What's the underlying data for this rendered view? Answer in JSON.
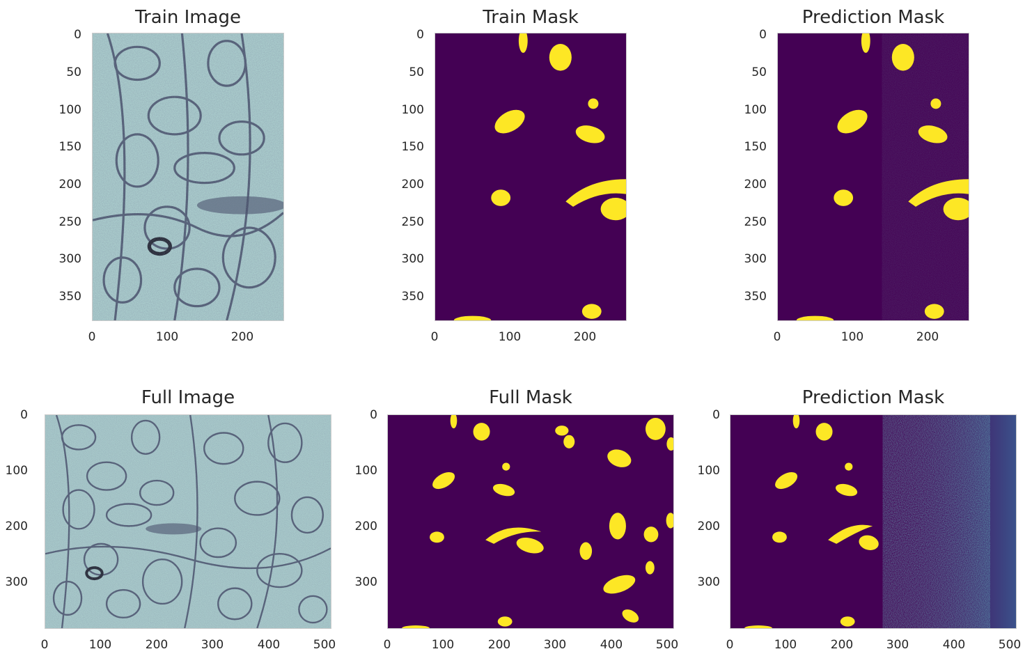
{
  "figure": {
    "panels": [
      {
        "id": "train-image",
        "title": "Train Image",
        "kind": "em",
        "xticks": [
          "0",
          "100",
          "200"
        ],
        "yticks": [
          "0",
          "50",
          "100",
          "150",
          "200",
          "250",
          "300",
          "350"
        ]
      },
      {
        "id": "train-mask",
        "title": "Train Mask",
        "kind": "mask",
        "xticks": [
          "0",
          "100",
          "200"
        ],
        "yticks": [
          "0",
          "50",
          "100",
          "150",
          "200",
          "250",
          "300",
          "350"
        ]
      },
      {
        "id": "train-prediction",
        "title": "Prediction Mask",
        "kind": "pred",
        "xticks": [
          "0",
          "100",
          "200"
        ],
        "yticks": [
          "0",
          "50",
          "100",
          "150",
          "200",
          "250",
          "300",
          "350"
        ]
      },
      {
        "id": "full-image",
        "title": "Full Image",
        "kind": "em",
        "xticks": [
          "0",
          "100",
          "200",
          "300",
          "400",
          "500"
        ],
        "yticks": [
          "0",
          "100",
          "200",
          "300"
        ]
      },
      {
        "id": "full-mask",
        "title": "Full Mask",
        "kind": "mask",
        "xticks": [
          "0",
          "100",
          "200",
          "300",
          "400",
          "500"
        ],
        "yticks": [
          "0",
          "100",
          "200",
          "300"
        ]
      },
      {
        "id": "full-prediction",
        "title": "Prediction Mask",
        "kind": "pred",
        "xticks": [
          "0",
          "100",
          "200",
          "300",
          "400",
          "500"
        ],
        "yticks": [
          "0",
          "100",
          "200",
          "300"
        ]
      }
    ],
    "colors": {
      "mask_background": "#440154",
      "mask_foreground": "#fde725",
      "prediction_noise": "#3b528b",
      "em_light": "#b2d8d4",
      "em_dark": "#3a3f5c"
    }
  }
}
